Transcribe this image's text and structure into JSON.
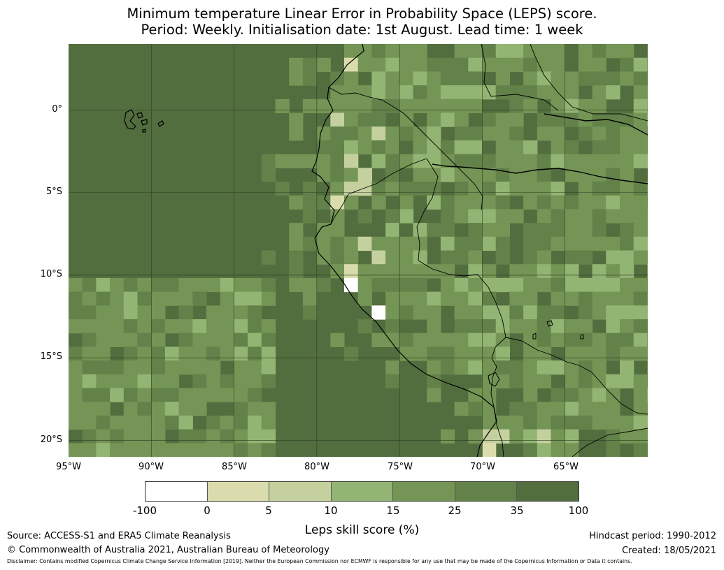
{
  "title": {
    "line1": "Minimum temperature Linear Error in Probability Space (LEPS) score.",
    "line2": "Period: Weekly. Initialisation date: 1st August. Lead time: 1 week"
  },
  "map": {
    "region": "Western South America",
    "latitude_labels": [
      "0°",
      "5°S",
      "10°S",
      "15°S",
      "20°S"
    ],
    "longitude_labels": [
      "95°W",
      "90°W",
      "85°W",
      "80°W",
      "75°W",
      "70°W",
      "65°W"
    ],
    "extent": {
      "lon_min": -95,
      "lon_max": -60,
      "lat_min": -21,
      "lat_max": 4
    },
    "legend_classes": [
      {
        "range": "-100 to 0",
        "color": "#ffffff"
      },
      {
        "range": "0 to 5",
        "color": "#dbdcae"
      },
      {
        "range": "5 to 10",
        "color": "#c4d19e"
      },
      {
        "range": "10 to 15",
        "color": "#93b573"
      },
      {
        "range": "15 to 25",
        "color": "#749555"
      },
      {
        "range": "25 to 35",
        "color": "#62824a"
      },
      {
        "range": "35 to 100",
        "color": "#526d3e"
      }
    ]
  },
  "colorbar": {
    "ticks": [
      "-100",
      "0",
      "5",
      "10",
      "15",
      "25",
      "35",
      "100"
    ],
    "label": "Leps skill score (%)"
  },
  "footer": {
    "source": "Source: ACCESS-S1 and ERA5 Climate Reanalysis",
    "copyright": "© Commonwealth of Australia 2021, Australian Bureau of Meteorology",
    "hindcast": "Hindcast period: 1990-2012",
    "created": "Created: 18/05/2021",
    "disclaimer": "Disclaimer: Contains modified Copernicus Climate Change Service Information [2019]. Neither the European Commission nor ECMWF is responsible for any use that may be made of the Copernicus Information or Data it contains."
  }
}
